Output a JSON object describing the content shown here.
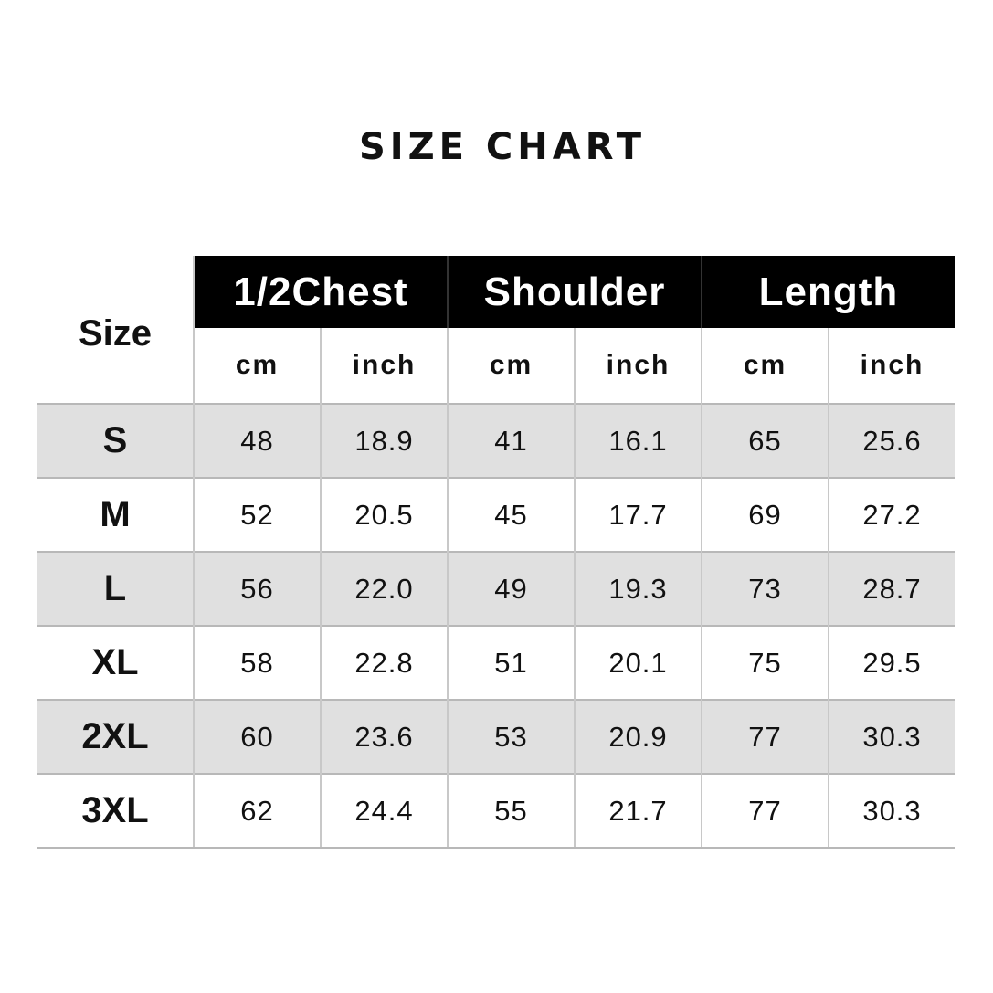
{
  "title": "SIZE CHART",
  "table": {
    "size_header": "Size",
    "groups": [
      "1/2Chest",
      "Shoulder",
      "Length"
    ],
    "units": [
      "cm",
      "inch",
      "cm",
      "inch",
      "cm",
      "inch"
    ],
    "rows": [
      {
        "size": "S",
        "values": [
          "48",
          "18.9",
          "41",
          "16.1",
          "65",
          "25.6"
        ]
      },
      {
        "size": "M",
        "values": [
          "52",
          "20.5",
          "45",
          "17.7",
          "69",
          "27.2"
        ]
      },
      {
        "size": "L",
        "values": [
          "56",
          "22.0",
          "49",
          "19.3",
          "73",
          "28.7"
        ]
      },
      {
        "size": "XL",
        "values": [
          "58",
          "22.8",
          "51",
          "20.1",
          "75",
          "29.5"
        ]
      },
      {
        "size": "2XL",
        "values": [
          "60",
          "23.6",
          "53",
          "20.9",
          "77",
          "30.3"
        ]
      },
      {
        "size": "3XL",
        "values": [
          "62",
          "24.4",
          "55",
          "21.7",
          "77",
          "30.3"
        ]
      }
    ],
    "colors": {
      "header_bg": "#000000",
      "alt_row_bg": "#e0e0e0"
    }
  }
}
